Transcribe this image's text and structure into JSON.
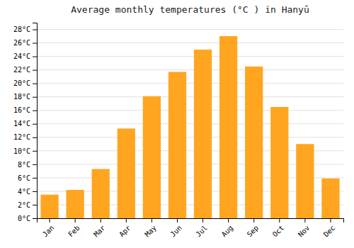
{
  "chart_data": {
    "type": "bar",
    "title": "Average monthly temperatures (°C ) in Hanyū",
    "categories": [
      "Jan",
      "Feb",
      "Mar",
      "Apr",
      "May",
      "Jun",
      "Jul",
      "Aug",
      "Sep",
      "Oct",
      "Nov",
      "Dec"
    ],
    "values": [
      3.5,
      4.2,
      7.3,
      13.3,
      18.1,
      21.7,
      25.0,
      27.0,
      22.5,
      16.5,
      11.0,
      5.9
    ],
    "color": "#FFA520",
    "ylim": [
      0,
      29
    ],
    "yticks": [
      {
        "value": 0,
        "label": "0°C"
      },
      {
        "value": 2,
        "label": "2°C"
      },
      {
        "value": 4,
        "label": "4°C"
      },
      {
        "value": 6,
        "label": "6°C"
      },
      {
        "value": 8,
        "label": "8°C"
      },
      {
        "value": 10,
        "label": "10°C"
      },
      {
        "value": 12,
        "label": "12°C"
      },
      {
        "value": 14,
        "label": "14°C"
      },
      {
        "value": 16,
        "label": "16°C"
      },
      {
        "value": 18,
        "label": "18°C"
      },
      {
        "value": 20,
        "label": "20°C"
      },
      {
        "value": 22,
        "label": "22°C"
      },
      {
        "value": 24,
        "label": "24°C"
      },
      {
        "value": 26,
        "label": "26°C"
      },
      {
        "value": 28,
        "label": "28°C"
      }
    ],
    "grid": true
  }
}
